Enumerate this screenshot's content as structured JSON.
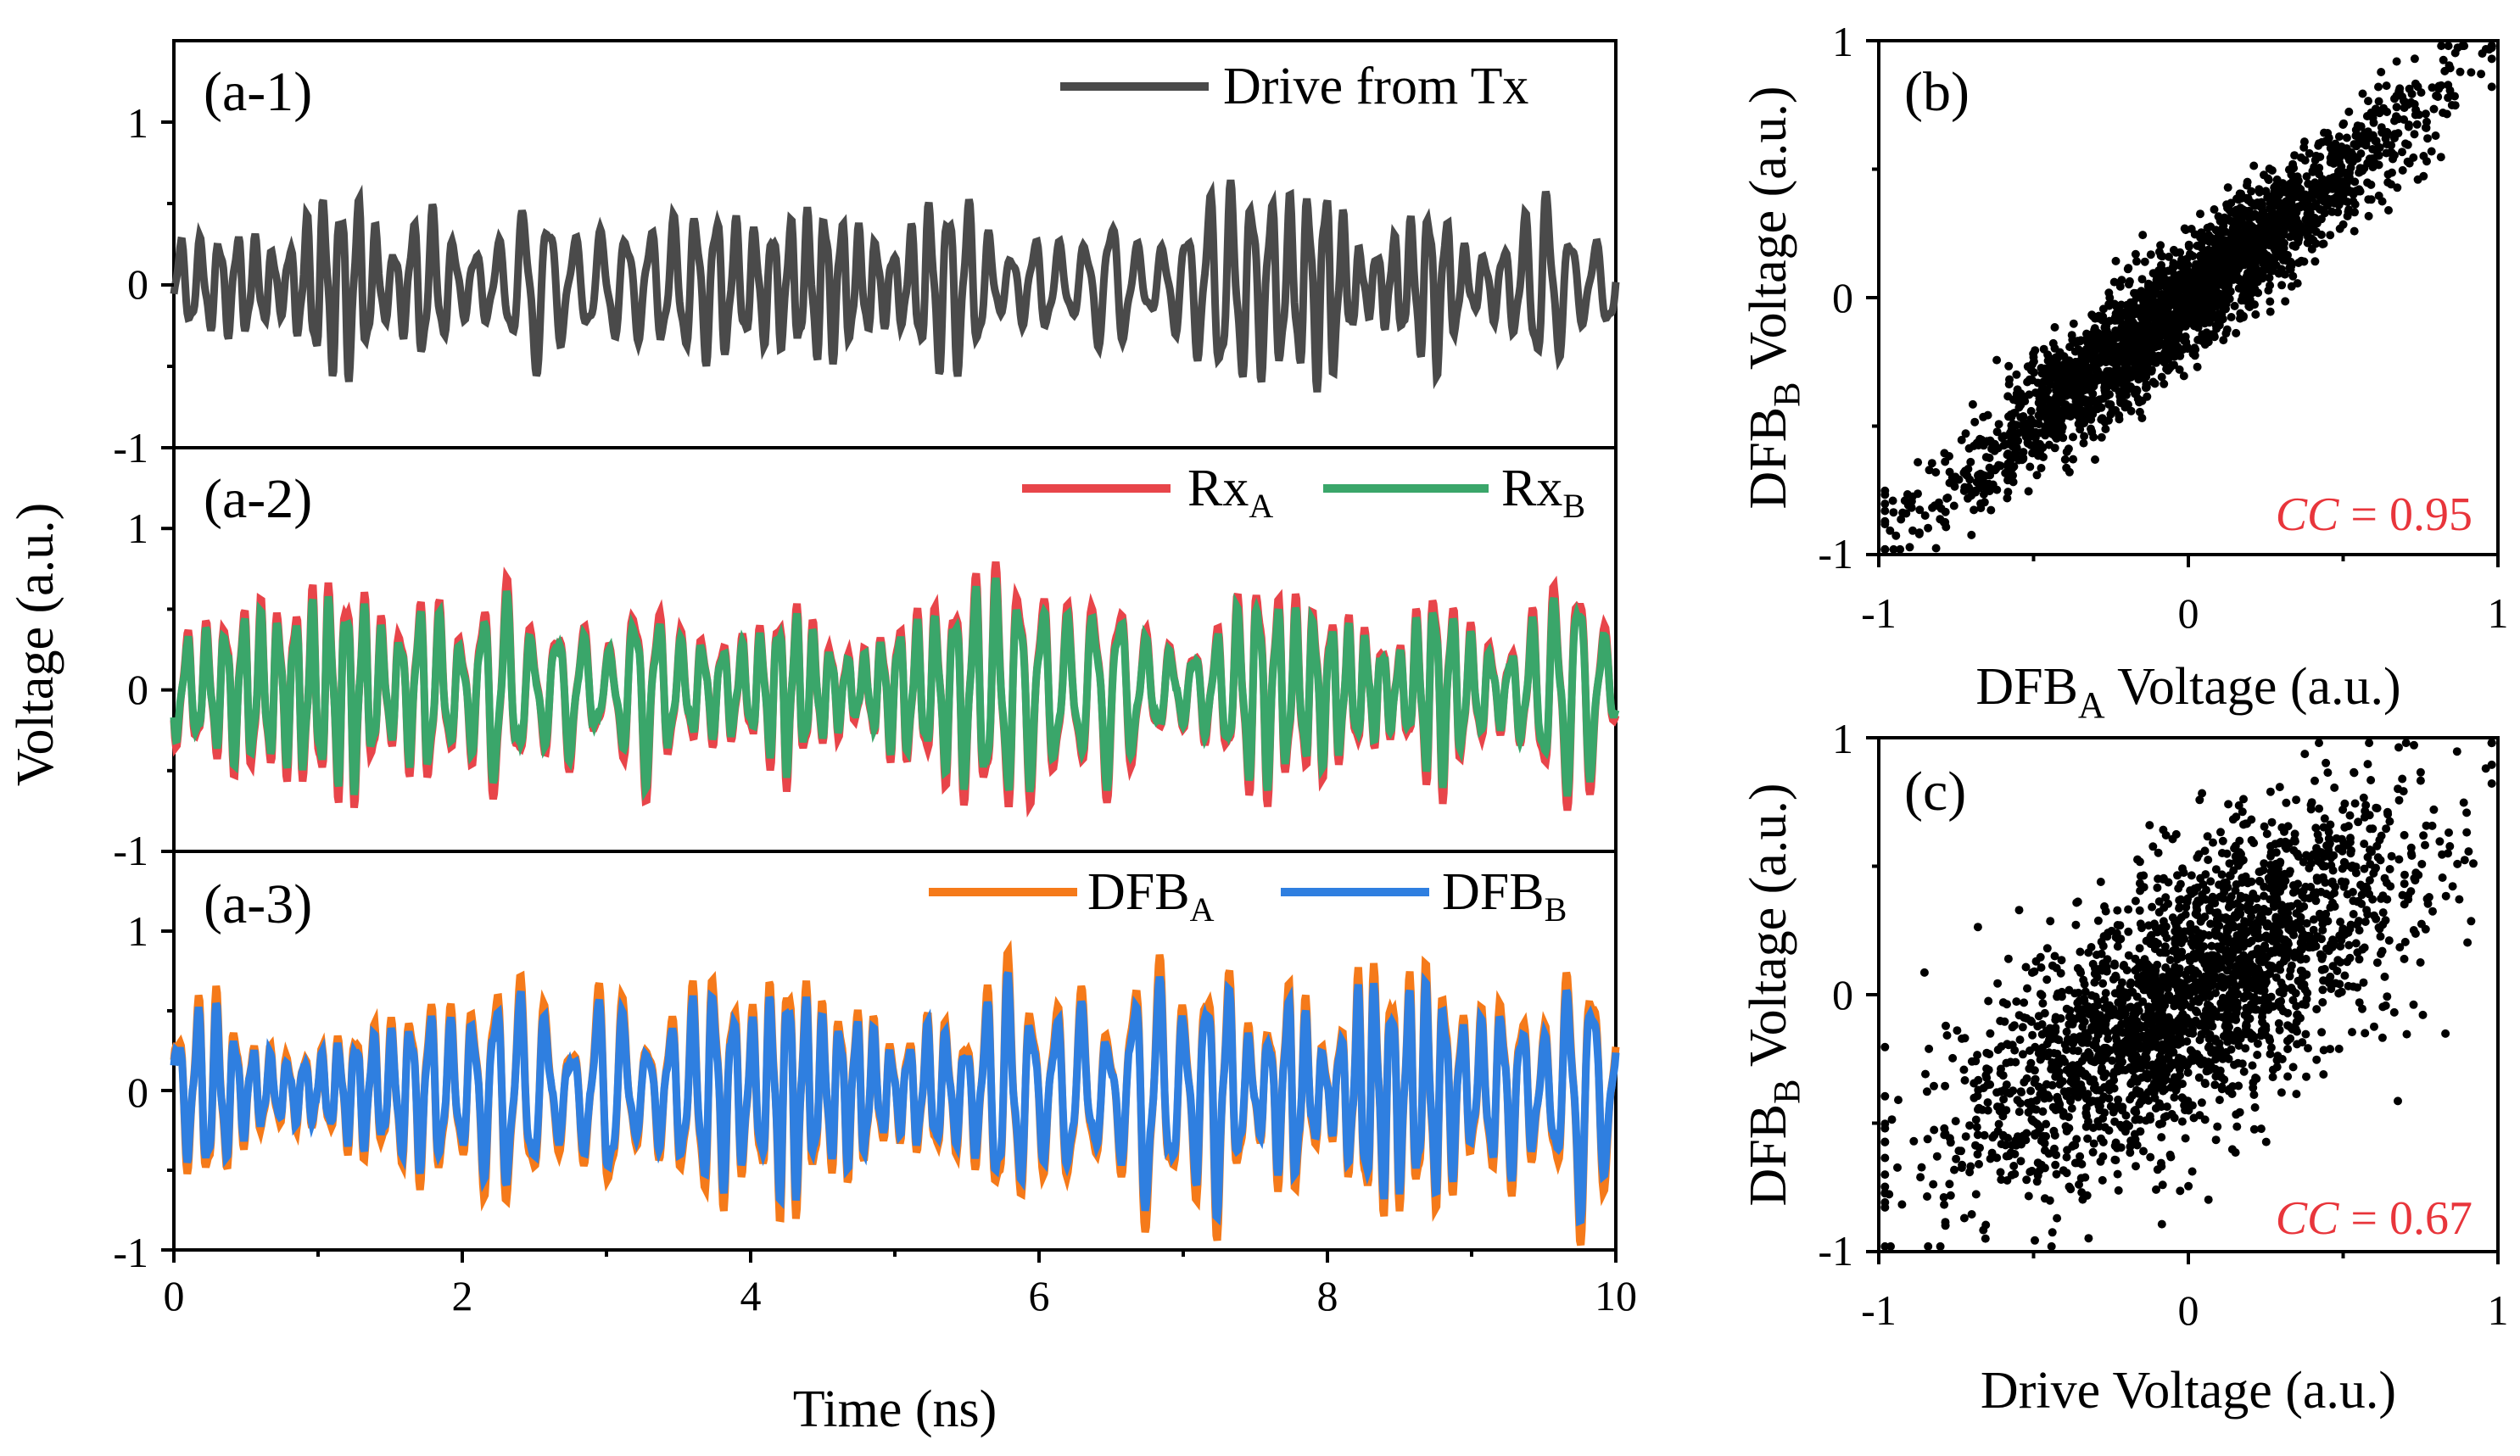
{
  "colors": {
    "drive": "#4a4a4a",
    "rx_a": "#e8454a",
    "rx_b": "#3aa66a",
    "dfb_a": "#f57a1a",
    "dfb_b": "#2f7fe0",
    "scatter": "#000000",
    "cc": "#e8353b"
  },
  "chart_data": [
    {
      "id": "a-1",
      "type": "line",
      "panel_label": "(a-1)",
      "x_range": [
        0,
        10
      ],
      "ylim": [
        -1,
        1.5
      ],
      "y_ticks": [
        "1",
        "0",
        "-1"
      ],
      "series": [
        {
          "name": "Drive from Tx",
          "color_key": "drive",
          "seed": 11,
          "amplitude": 0.5
        }
      ]
    },
    {
      "id": "a-2",
      "type": "line",
      "panel_label": "(a-2)",
      "x_range": [
        0,
        10
      ],
      "ylim": [
        -1,
        1.5
      ],
      "y_ticks": [
        "1",
        "0",
        "-1"
      ],
      "series": [
        {
          "name_main": "Rx",
          "name_sub": "A",
          "color_key": "rx_a",
          "seed": 23,
          "amplitude": 0.62
        },
        {
          "name_main": "Rx",
          "name_sub": "B",
          "color_key": "rx_b",
          "seed": 23,
          "amplitude": 0.58
        }
      ]
    },
    {
      "id": "a-3",
      "type": "line",
      "panel_label": "(a-3)",
      "x_range": [
        0,
        10
      ],
      "ylim": [
        -1,
        1.5
      ],
      "y_ticks": [
        "1",
        "0",
        "-1"
      ],
      "x_ticks": [
        "0",
        "2",
        "4",
        "6",
        "8",
        "10"
      ],
      "xlabel": "Time (ns)",
      "series": [
        {
          "name_main": "DFB",
          "name_sub": "A",
          "color_key": "dfb_a",
          "seed": 37,
          "amplitude": 0.72
        },
        {
          "name_main": "DFB",
          "name_sub": "B",
          "color_key": "dfb_b",
          "seed": 37,
          "amplitude": 0.66
        }
      ]
    },
    {
      "id": "b",
      "type": "scatter",
      "panel_label": "(b)",
      "xlim": [
        -1,
        1
      ],
      "ylim": [
        -1,
        1
      ],
      "x_ticks": [
        "-1",
        "0",
        "1"
      ],
      "y_ticks": [
        "1",
        "0",
        "-1"
      ],
      "xlabel_main": "DFB",
      "xlabel_sub": "A",
      "xlabel_rest": " Voltage (a.u.)",
      "ylabel_main": "DFB",
      "ylabel_sub": "B",
      "ylabel_rest": " Voltage (a.u.)",
      "cc_label": "CC",
      "cc_value": " = 0.95",
      "correlation": 0.95,
      "n_points": 2600
    },
    {
      "id": "c",
      "type": "scatter",
      "panel_label": "(c)",
      "xlim": [
        -1,
        1
      ],
      "ylim": [
        -1,
        1
      ],
      "x_ticks": [
        "-1",
        "0",
        "1"
      ],
      "y_ticks": [
        "1",
        "0",
        "-1"
      ],
      "xlabel": "Drive Voltage (a.u.)",
      "ylabel_main": "DFB",
      "ylabel_sub": "B",
      "ylabel_rest": " Voltage (a.u.)",
      "cc_label": "CC",
      "cc_value": " = 0.67",
      "correlation": 0.67,
      "n_points": 2400
    }
  ],
  "shared": {
    "ylabel_left": "Voltage (a.u.)"
  }
}
